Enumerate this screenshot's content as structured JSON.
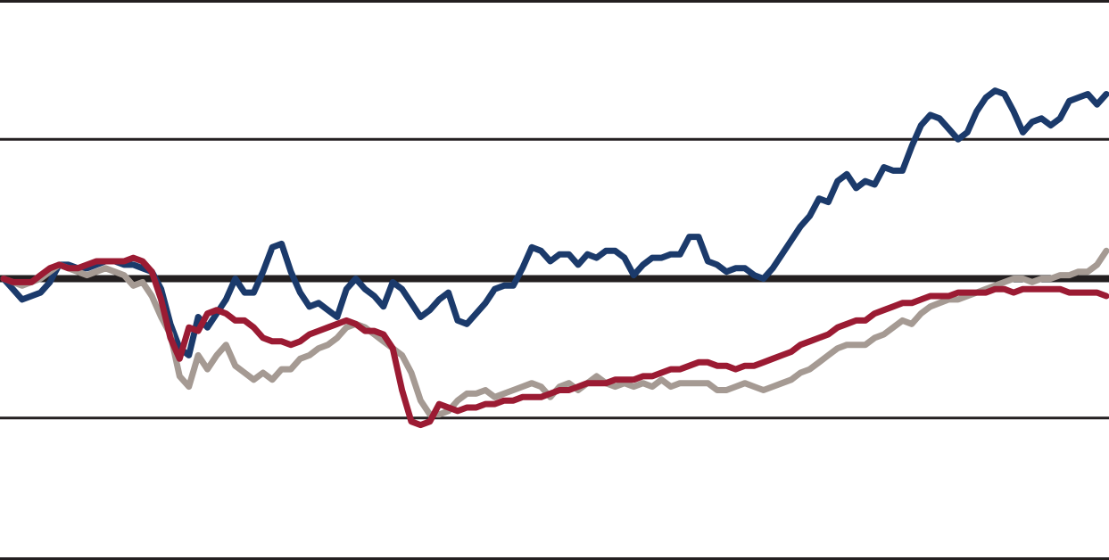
{
  "chart_data": {
    "type": "line",
    "title": "",
    "xlabel": "",
    "ylabel": "",
    "ylim": [
      -4,
      4
    ],
    "baseline": 0,
    "grid_values": [
      -4,
      -2,
      0,
      2,
      4
    ],
    "grid_on": true,
    "x_count": 120,
    "colors": {
      "blue": "#1b3a6b",
      "gray": "#a59a93",
      "red": "#9b1b33",
      "grid": "#231f20"
    },
    "series": [
      {
        "color_key": "blue",
        "values": [
          0.0,
          -0.15,
          -0.3,
          -0.25,
          -0.2,
          -0.05,
          0.2,
          0.2,
          0.15,
          0.15,
          0.2,
          0.25,
          0.25,
          0.2,
          0.2,
          0.15,
          0.1,
          -0.15,
          -0.65,
          -1.0,
          -1.1,
          -0.55,
          -0.7,
          -0.5,
          -0.3,
          0.0,
          -0.2,
          -0.2,
          0.1,
          0.45,
          0.5,
          0.1,
          -0.2,
          -0.4,
          -0.35,
          -0.45,
          -0.55,
          -0.15,
          0.0,
          -0.15,
          -0.25,
          -0.4,
          -0.05,
          -0.15,
          -0.35,
          -0.55,
          -0.45,
          -0.3,
          -0.2,
          -0.6,
          -0.65,
          -0.5,
          -0.35,
          -0.15,
          -0.1,
          -0.1,
          0.15,
          0.45,
          0.4,
          0.25,
          0.35,
          0.35,
          0.2,
          0.35,
          0.3,
          0.4,
          0.4,
          0.3,
          0.05,
          0.2,
          0.3,
          0.3,
          0.35,
          0.35,
          0.6,
          0.6,
          0.25,
          0.2,
          0.1,
          0.15,
          0.15,
          0.05,
          0.0,
          0.15,
          0.35,
          0.55,
          0.75,
          0.9,
          1.15,
          1.1,
          1.4,
          1.5,
          1.3,
          1.4,
          1.35,
          1.6,
          1.55,
          1.55,
          1.9,
          2.2,
          2.35,
          2.3,
          2.15,
          2.0,
          2.1,
          2.4,
          2.6,
          2.7,
          2.65,
          2.4,
          2.1,
          2.25,
          2.3,
          2.2,
          2.3,
          2.55,
          2.6,
          2.65,
          2.5,
          2.65
        ]
      },
      {
        "color_key": "gray",
        "values": [
          0.0,
          -0.05,
          -0.1,
          -0.05,
          0.0,
          0.1,
          0.2,
          0.15,
          0.1,
          0.05,
          0.1,
          0.15,
          0.1,
          0.05,
          -0.1,
          -0.05,
          -0.25,
          -0.55,
          -0.8,
          -1.4,
          -1.55,
          -1.1,
          -1.3,
          -1.1,
          -0.95,
          -1.25,
          -1.35,
          -1.45,
          -1.35,
          -1.45,
          -1.3,
          -1.3,
          -1.15,
          -1.1,
          -1.0,
          -0.95,
          -0.85,
          -0.7,
          -0.65,
          -0.7,
          -0.8,
          -0.9,
          -1.0,
          -1.1,
          -1.35,
          -1.75,
          -1.95,
          -1.95,
          -1.9,
          -1.75,
          -1.65,
          -1.65,
          -1.6,
          -1.7,
          -1.65,
          -1.6,
          -1.55,
          -1.5,
          -1.55,
          -1.7,
          -1.55,
          -1.5,
          -1.6,
          -1.5,
          -1.4,
          -1.5,
          -1.55,
          -1.5,
          -1.55,
          -1.5,
          -1.55,
          -1.45,
          -1.55,
          -1.5,
          -1.5,
          -1.5,
          -1.5,
          -1.6,
          -1.6,
          -1.55,
          -1.5,
          -1.55,
          -1.6,
          -1.55,
          -1.5,
          -1.45,
          -1.35,
          -1.3,
          -1.2,
          -1.1,
          -1.0,
          -0.95,
          -0.95,
          -0.95,
          -0.85,
          -0.8,
          -0.7,
          -0.6,
          -0.65,
          -0.5,
          -0.4,
          -0.35,
          -0.3,
          -0.3,
          -0.25,
          -0.2,
          -0.15,
          -0.1,
          -0.05,
          0.0,
          0.0,
          -0.05,
          0.0,
          0.0,
          0.05,
          0.05,
          0.1,
          0.1,
          0.2,
          0.4
        ]
      },
      {
        "color_key": "red",
        "values": [
          0.0,
          -0.05,
          -0.05,
          -0.05,
          0.05,
          0.15,
          0.2,
          0.15,
          0.15,
          0.2,
          0.25,
          0.25,
          0.25,
          0.25,
          0.3,
          0.25,
          0.1,
          -0.3,
          -0.85,
          -1.15,
          -0.7,
          -0.75,
          -0.5,
          -0.45,
          -0.5,
          -0.6,
          -0.6,
          -0.7,
          -0.85,
          -0.9,
          -0.9,
          -0.95,
          -0.9,
          -0.8,
          -0.75,
          -0.7,
          -0.65,
          -0.6,
          -0.65,
          -0.75,
          -0.75,
          -0.8,
          -1.0,
          -1.6,
          -2.05,
          -2.1,
          -2.05,
          -1.8,
          -1.85,
          -1.9,
          -1.85,
          -1.85,
          -1.8,
          -1.8,
          -1.75,
          -1.75,
          -1.7,
          -1.7,
          -1.7,
          -1.65,
          -1.6,
          -1.6,
          -1.55,
          -1.5,
          -1.5,
          -1.5,
          -1.45,
          -1.45,
          -1.45,
          -1.4,
          -1.4,
          -1.35,
          -1.3,
          -1.3,
          -1.25,
          -1.2,
          -1.2,
          -1.25,
          -1.25,
          -1.3,
          -1.25,
          -1.25,
          -1.2,
          -1.15,
          -1.1,
          -1.05,
          -0.95,
          -0.9,
          -0.85,
          -0.8,
          -0.7,
          -0.65,
          -0.6,
          -0.6,
          -0.5,
          -0.45,
          -0.4,
          -0.35,
          -0.35,
          -0.3,
          -0.25,
          -0.25,
          -0.25,
          -0.2,
          -0.2,
          -0.2,
          -0.2,
          -0.15,
          -0.15,
          -0.2,
          -0.15,
          -0.15,
          -0.15,
          -0.15,
          -0.15,
          -0.2,
          -0.2,
          -0.2,
          -0.2,
          -0.25
        ]
      }
    ]
  }
}
